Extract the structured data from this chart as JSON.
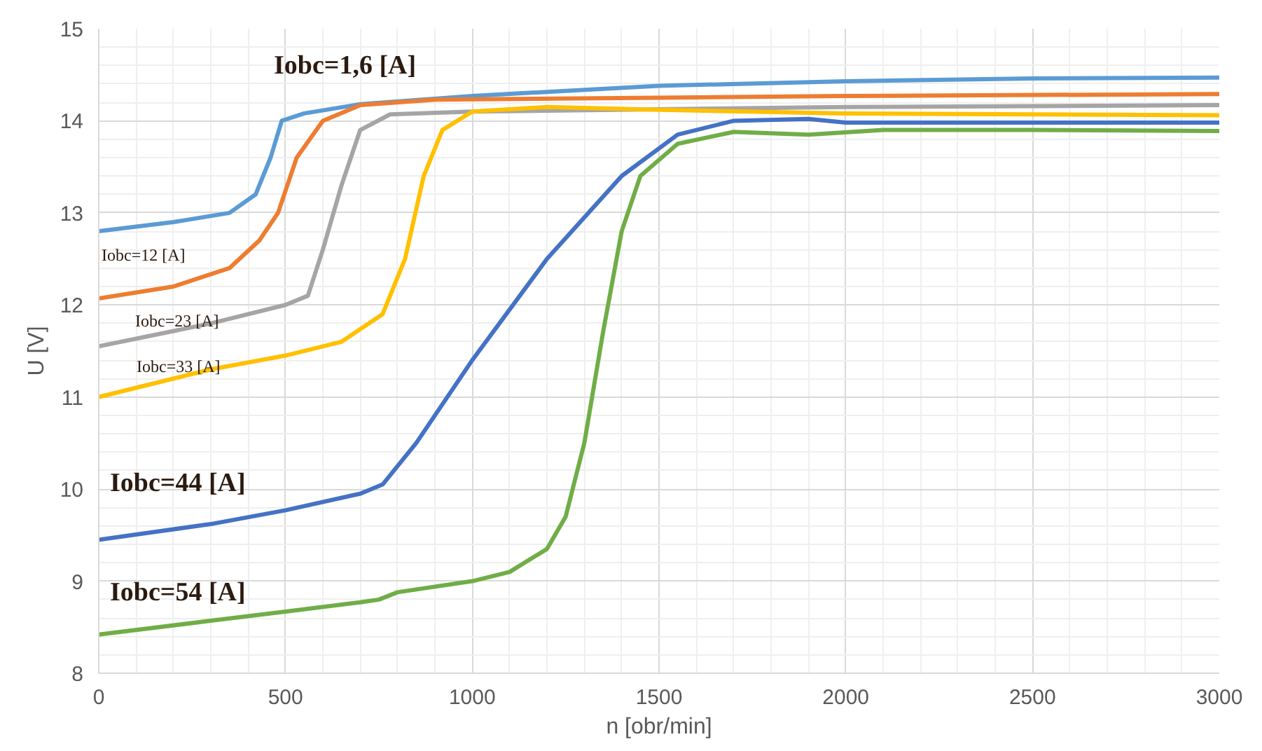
{
  "chart_data": {
    "type": "line",
    "xlabel": "n [obr/min]",
    "ylabel": "U [V]",
    "xlim": [
      0,
      3000
    ],
    "ylim": [
      8,
      15
    ],
    "xticks": [
      0,
      500,
      1000,
      1500,
      2000,
      2500,
      3000
    ],
    "yticks": [
      8,
      9,
      10,
      11,
      12,
      13,
      14,
      15
    ],
    "grid": true,
    "marker": "none",
    "line_style": "solid",
    "series": [
      {
        "name": "Iobc=1,6 [A]",
        "color": "#5b9bd5",
        "x": [
          0,
          200,
          350,
          420,
          460,
          490,
          550,
          700,
          1000,
          1500,
          2000,
          2500,
          3000
        ],
        "values": [
          12.8,
          12.9,
          13.0,
          13.2,
          13.6,
          14.0,
          14.08,
          14.18,
          14.27,
          14.38,
          14.43,
          14.46,
          14.47
        ]
      },
      {
        "name": "Iobc=12 [A]",
        "color": "#ed7d31",
        "x": [
          0,
          200,
          350,
          430,
          480,
          530,
          600,
          700,
          900,
          1500,
          2000,
          3000
        ],
        "values": [
          12.07,
          12.2,
          12.4,
          12.7,
          13.0,
          13.6,
          14.0,
          14.17,
          14.23,
          14.25,
          14.27,
          14.29
        ]
      },
      {
        "name": "Iobc=23 [A]",
        "color": "#a5a5a5",
        "x": [
          0,
          300,
          500,
          560,
          600,
          650,
          700,
          780,
          1000,
          2000,
          3000
        ],
        "values": [
          11.55,
          11.8,
          12.0,
          12.1,
          12.6,
          13.3,
          13.9,
          14.07,
          14.1,
          14.15,
          14.17
        ]
      },
      {
        "name": "Iobc=33 [A]",
        "color": "#ffc000",
        "x": [
          0,
          300,
          500,
          650,
          760,
          820,
          870,
          920,
          1000,
          1200,
          1500,
          2000,
          3000
        ],
        "values": [
          11.0,
          11.3,
          11.45,
          11.6,
          11.9,
          12.5,
          13.4,
          13.9,
          14.1,
          14.15,
          14.12,
          14.08,
          14.06
        ]
      },
      {
        "name": "Iobc=44 [A]",
        "color": "#4472c4",
        "x": [
          0,
          300,
          500,
          700,
          760,
          850,
          1000,
          1200,
          1400,
          1550,
          1700,
          1900,
          2000,
          2500,
          3000
        ],
        "values": [
          9.45,
          9.62,
          9.77,
          9.95,
          10.05,
          10.5,
          11.4,
          12.5,
          13.4,
          13.85,
          14.0,
          14.02,
          13.98,
          13.98,
          13.98
        ]
      },
      {
        "name": "Iobc=54 [A]",
        "color": "#70ad47",
        "x": [
          0,
          300,
          500,
          700,
          750,
          800,
          1000,
          1100,
          1200,
          1250,
          1300,
          1350,
          1400,
          1450,
          1550,
          1700,
          1900,
          2100,
          2500,
          3000
        ],
        "values": [
          8.42,
          8.57,
          8.67,
          8.77,
          8.8,
          8.88,
          9.0,
          9.1,
          9.35,
          9.7,
          10.5,
          11.7,
          12.8,
          13.4,
          13.75,
          13.88,
          13.85,
          13.9,
          13.9,
          13.89
        ]
      }
    ]
  }
}
